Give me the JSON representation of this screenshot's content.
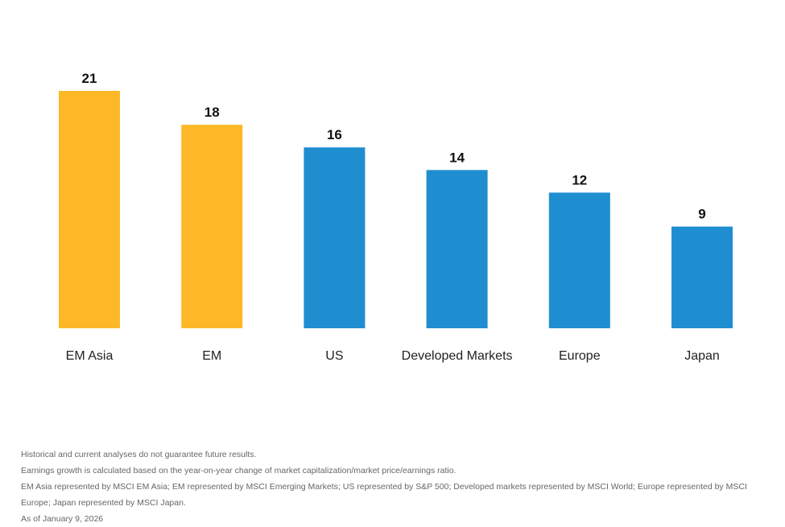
{
  "colors": {
    "highlight": "#FDB827",
    "default": "#1F8ED1"
  },
  "chart_data": {
    "type": "bar",
    "categories": [
      "EM Asia",
      "EM",
      "US",
      "Developed Markets",
      "Europe",
      "Japan"
    ],
    "values": [
      21,
      18,
      16,
      14,
      12,
      9
    ],
    "bar_colors": [
      "#FDB827",
      "#FDB827",
      "#1F8ED1",
      "#1F8ED1",
      "#1F8ED1",
      "#1F8ED1"
    ],
    "ylim": [
      0,
      21
    ],
    "grid": false,
    "legend": "none"
  },
  "notes": [
    "Historical and current analyses do not guarantee future results.",
    "Earnings growth is calculated based on the year-on-year change of market capitalization/market price/earnings ratio.",
    "EM Asia represented by MSCI EM Asia; EM represented by MSCI Emerging Markets; US represented by S&P 500; Developed markets represented by MSCI World; Europe represented by MSCI Europe; Japan represented by MSCI Japan.",
    "As of January 9, 2026"
  ]
}
